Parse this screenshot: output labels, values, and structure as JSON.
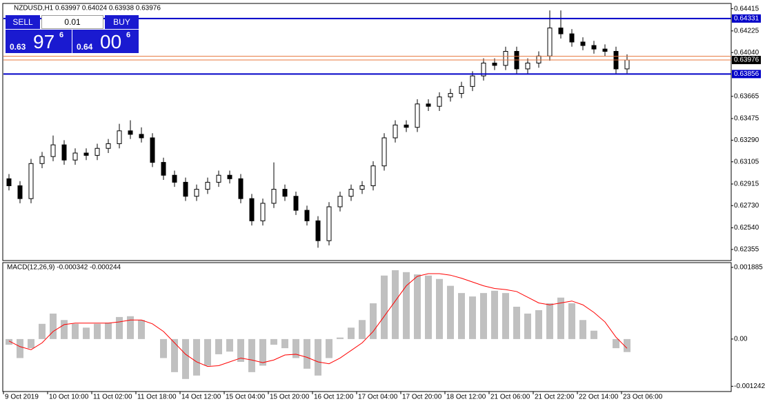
{
  "header": {
    "symbol": "NZDUSD,H1",
    "ohlc": "0.63997 0.64024 0.63938 0.63976"
  },
  "trade_panel": {
    "sell": "SELL",
    "buy": "BUY",
    "lot": "0.01",
    "sell_price": {
      "prefix": "0.63",
      "big": "97",
      "small": "6"
    },
    "buy_price": {
      "prefix": "0.64",
      "big": "00",
      "small": "6"
    }
  },
  "chart_data": [
    {
      "type": "candlestick",
      "x_labels": [
        "9 Oct 2019",
        "10 Oct 10:00",
        "11 Oct 02:00",
        "11 Oct 18:00",
        "14 Oct 12:00",
        "15 Oct 04:00",
        "15 Oct 20:00",
        "16 Oct 12:00",
        "17 Oct 04:00",
        "17 Oct 20:00",
        "18 Oct 12:00",
        "21 Oct 06:00",
        "21 Oct 22:00",
        "22 Oct 14:00",
        "23 Oct 06:00"
      ],
      "open": [
        0.6296,
        0.629,
        0.6279,
        0.6309,
        0.6315,
        0.6325,
        0.6312,
        0.6318,
        0.6316,
        0.6322,
        0.6326,
        0.6337,
        0.6334,
        0.6331,
        0.631,
        0.6299,
        0.6293,
        0.6281,
        0.6287,
        0.6293,
        0.6299,
        0.6296,
        0.6279,
        0.626,
        0.6275,
        0.6287,
        0.6281,
        0.6269,
        0.626,
        0.6243,
        0.6272,
        0.6281,
        0.6287,
        0.629,
        0.6307,
        0.6331,
        0.6342,
        0.634,
        0.636,
        0.6358,
        0.6366,
        0.6369,
        0.6375,
        0.6384,
        0.6395,
        0.6393,
        0.6405,
        0.639,
        0.6395,
        0.6401,
        0.6425,
        0.642,
        0.6413,
        0.641,
        0.6407,
        0.6405,
        0.639
      ],
      "high": [
        0.63,
        0.6294,
        0.6313,
        0.6319,
        0.6333,
        0.6329,
        0.6322,
        0.6322,
        0.6326,
        0.633,
        0.6343,
        0.6346,
        0.634,
        0.6335,
        0.6314,
        0.6303,
        0.6297,
        0.6291,
        0.6297,
        0.6303,
        0.6303,
        0.63,
        0.6283,
        0.6279,
        0.631,
        0.6291,
        0.6285,
        0.6273,
        0.6264,
        0.6276,
        0.6285,
        0.6291,
        0.6294,
        0.6311,
        0.6335,
        0.6346,
        0.6346,
        0.6364,
        0.6364,
        0.637,
        0.6373,
        0.6379,
        0.6388,
        0.6399,
        0.6399,
        0.6409,
        0.6409,
        0.6399,
        0.6405,
        0.644,
        0.644,
        0.6424,
        0.6417,
        0.6414,
        0.6411,
        0.6409,
        0.64024
      ],
      "low": [
        0.6286,
        0.6275,
        0.6275,
        0.6305,
        0.6311,
        0.6308,
        0.6308,
        0.6312,
        0.6312,
        0.6318,
        0.6322,
        0.633,
        0.6327,
        0.6306,
        0.6295,
        0.6289,
        0.6277,
        0.6277,
        0.6283,
        0.6289,
        0.6292,
        0.6275,
        0.6256,
        0.6256,
        0.6271,
        0.6277,
        0.6265,
        0.6256,
        0.6237,
        0.6239,
        0.6268,
        0.6277,
        0.6283,
        0.6286,
        0.6303,
        0.6327,
        0.6336,
        0.6336,
        0.6354,
        0.6354,
        0.6362,
        0.6365,
        0.6371,
        0.638,
        0.6389,
        0.6389,
        0.6386,
        0.6386,
        0.6391,
        0.6397,
        0.6416,
        0.6409,
        0.6406,
        0.6403,
        0.6401,
        0.6386,
        0.63862
      ],
      "close": [
        0.629,
        0.6279,
        0.6309,
        0.6315,
        0.6325,
        0.6312,
        0.6318,
        0.6316,
        0.6322,
        0.6326,
        0.6337,
        0.6334,
        0.6331,
        0.631,
        0.6299,
        0.6293,
        0.6281,
        0.6287,
        0.6293,
        0.6299,
        0.6296,
        0.6279,
        0.626,
        0.6275,
        0.6287,
        0.6281,
        0.6269,
        0.626,
        0.6243,
        0.6272,
        0.6281,
        0.6287,
        0.629,
        0.6307,
        0.6331,
        0.6342,
        0.634,
        0.636,
        0.6358,
        0.6366,
        0.6369,
        0.6375,
        0.6384,
        0.6395,
        0.6393,
        0.6405,
        0.639,
        0.6395,
        0.6401,
        0.6425,
        0.642,
        0.6413,
        0.641,
        0.6407,
        0.6405,
        0.639,
        0.63976
      ],
      "ylim": [
        0.6226,
        0.6446
      ],
      "yticks": [
        0.64415,
        0.64225,
        {
          "value": 0.6404,
          "label": "0.64040"
        },
        0.63665,
        0.63475,
        {
          "value": 0.6329,
          "label": "0.63290"
        },
        0.63105,
        0.62915,
        {
          "value": 0.6273,
          "label": "0.62730"
        },
        {
          "value": 0.6254,
          "label": "0.62540"
        },
        0.62355
      ],
      "levels": [
        {
          "value": 0.64331,
          "color": "#0000c8",
          "boxed": true
        },
        {
          "value": 0.63856,
          "color": "#0000c8",
          "boxed": true
        },
        {
          "value": 0.64008,
          "color": "#e8743b",
          "boxed": false
        },
        {
          "value": 0.63976,
          "color": "#e8743b",
          "boxed": true
        }
      ]
    },
    {
      "type": "bar",
      "title": "MACD(12,26,9) -0.000342 -0.000244",
      "values": [
        -0.00015,
        -0.0005,
        -0.00024,
        0.0004,
        0.00067,
        0.0005,
        0.0004,
        0.0003,
        0.0004,
        0.00043,
        0.00058,
        0.0006,
        0.0005,
        0.0,
        -0.0005,
        -0.00087,
        -0.00105,
        -0.00096,
        -0.0007,
        -0.0004,
        -0.00033,
        -0.0006,
        -0.00087,
        -0.0007,
        -0.00015,
        -0.00024,
        -0.0005,
        -0.00078,
        -0.00096,
        -0.0005,
        4e-05,
        0.0003,
        0.0005,
        0.00094,
        0.00167,
        0.00181,
        0.00176,
        0.0017,
        0.00167,
        0.00158,
        0.0014,
        0.00121,
        0.00112,
        0.00121,
        0.00127,
        0.00121,
        0.00085,
        0.00067,
        0.00076,
        0.00094,
        0.00109,
        0.00094,
        0.0005,
        0.00022,
        0.0,
        -0.00024,
        -0.000342
      ],
      "signal": [
        -5e-05,
        -0.0002,
        -0.00028,
        -0.0001,
        0.0002,
        0.00038,
        0.00042,
        0.00042,
        0.00042,
        0.00042,
        0.00045,
        0.0005,
        0.0005,
        0.0004,
        0.0002,
        -0.0001,
        -0.0004,
        -0.0006,
        -0.00072,
        -0.0007,
        -0.0006,
        -0.0005,
        -0.00055,
        -0.00062,
        -0.00055,
        -0.00042,
        -0.0004,
        -0.00048,
        -0.0006,
        -0.00065,
        -0.0005,
        -0.0003,
        -0.0001,
        0.0002,
        0.0006,
        0.001,
        0.0014,
        0.00165,
        0.00172,
        0.00172,
        0.00168,
        0.0016,
        0.0015,
        0.0014,
        0.00133,
        0.0013,
        0.00125,
        0.0011,
        0.00095,
        0.0009,
        0.00095,
        0.001,
        0.0009,
        0.0007,
        0.00045,
        5e-05,
        -0.000244
      ],
      "color": "#c0c0c0",
      "signal_color": "#ff0000",
      "ylim": [
        -0.00138,
        0.00201
      ],
      "yticks": [
        0.001885,
        {
          "value": 0,
          "label": "0.00"
        },
        -0.001242
      ]
    }
  ]
}
